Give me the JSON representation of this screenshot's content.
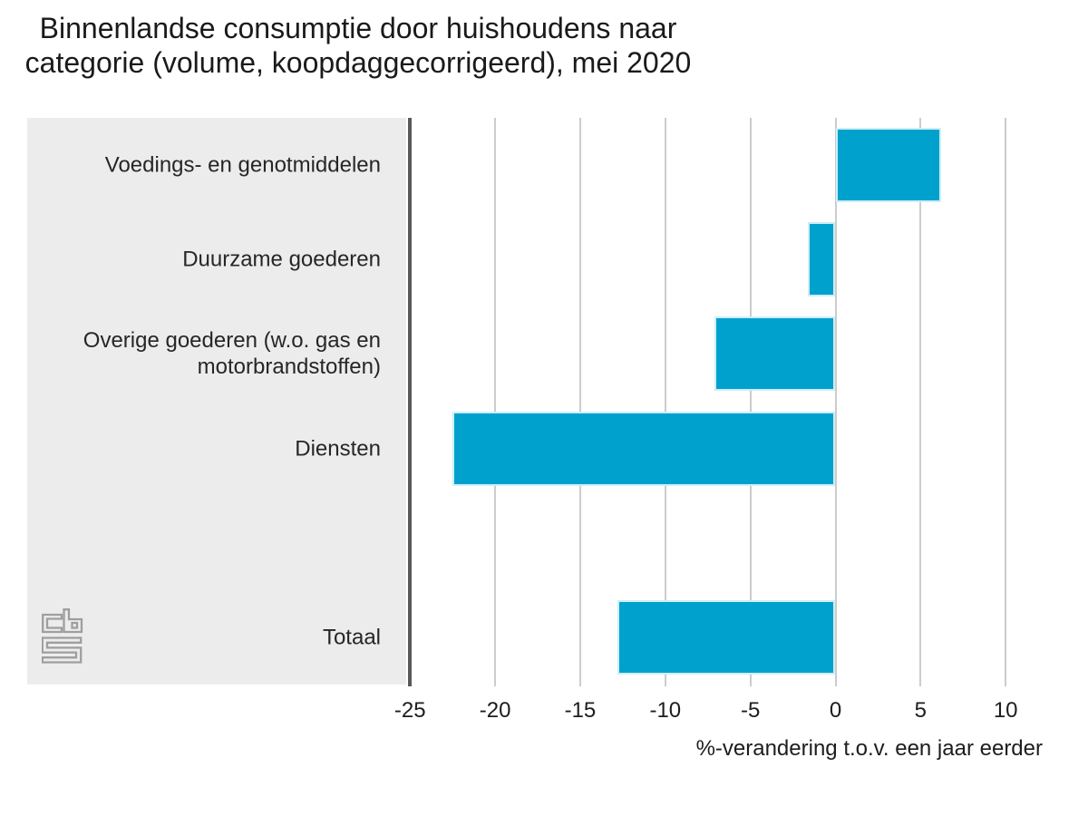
{
  "title": {
    "line1": "Binnenlandse consumptie door huishoudens naar",
    "line2": "categorie (volume, koopdaggecorrigeerd), mei 2020"
  },
  "chart_data": {
    "type": "bar",
    "orientation": "horizontal",
    "title": "Binnenlandse consumptie door huishoudens naar categorie (volume, koopdaggecorrigeerd), mei 2020",
    "categories": [
      "Voedings- en genotmiddelen",
      "Duurzame goederen",
      "Overige goederen (w.o. gas en\nmotorbrandstoffen)",
      "Diensten",
      "Totaal"
    ],
    "values": [
      6.2,
      -1.6,
      -7.1,
      -22.5,
      -12.8
    ],
    "xlabel": "%-verandering t.o.v. een jaar eerder",
    "xlim": [
      -25,
      14
    ],
    "xticks": [
      -25,
      -20,
      -15,
      -10,
      -5,
      0,
      5,
      10
    ],
    "grid": true,
    "legend": false,
    "totaal_row_separated_by_blank_row": true
  },
  "branding": {
    "logo": "cbs-logo"
  },
  "colors": {
    "bar": "#00a1cd",
    "bar_border": "#cdeef8",
    "panel": "#ececec",
    "gridline": "#cccccc",
    "axis_line": "#595959",
    "text": "#1d1d1d",
    "logo": "#9e9e9e"
  }
}
